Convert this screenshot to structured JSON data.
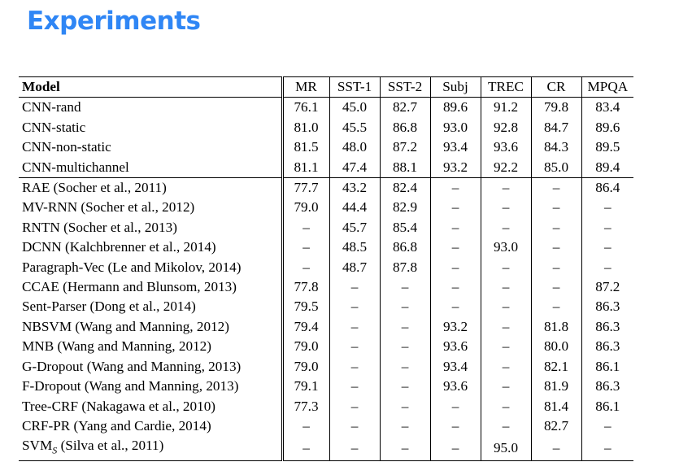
{
  "title": "Experiments",
  "table": {
    "headers": [
      "Model",
      "MR",
      "SST-1",
      "SST-2",
      "Subj",
      "TREC",
      "CR",
      "MPQA"
    ],
    "rows": [
      {
        "model": "CNN-rand",
        "values": [
          "76.1",
          "45.0",
          "82.7",
          "89.6",
          "91.2",
          "79.8",
          "83.4"
        ],
        "bold": []
      },
      {
        "model": "CNN-static",
        "values": [
          "81.0",
          "45.5",
          "86.8",
          "93.0",
          "92.8",
          "84.7",
          "89.6"
        ],
        "bold": [
          6
        ]
      },
      {
        "model": "CNN-non-static",
        "values": [
          "81.5",
          "48.0",
          "87.2",
          "93.4",
          "93.6",
          "84.3",
          "89.5"
        ],
        "bold": [
          0
        ]
      },
      {
        "model": "CNN-multichannel",
        "values": [
          "81.1",
          "47.4",
          "88.1",
          "93.2",
          "92.2",
          "85.0",
          "89.4"
        ],
        "bold": [
          2,
          5
        ],
        "group_end": true
      },
      {
        "model": "RAE (Socher et al., 2011)",
        "values": [
          "77.7",
          "43.2",
          "82.4",
          "–",
          "–",
          "–",
          "86.4"
        ],
        "bold": []
      },
      {
        "model": "MV-RNN (Socher et al., 2012)",
        "values": [
          "79.0",
          "44.4",
          "82.9",
          "–",
          "–",
          "–",
          "–"
        ],
        "bold": []
      },
      {
        "model": "RNTN (Socher et al., 2013)",
        "values": [
          "–",
          "45.7",
          "85.4",
          "–",
          "–",
          "–",
          "–"
        ],
        "bold": []
      },
      {
        "model": "DCNN (Kalchbrenner et al., 2014)",
        "values": [
          "–",
          "48.5",
          "86.8",
          "–",
          "93.0",
          "–",
          "–"
        ],
        "bold": []
      },
      {
        "model": "Paragraph-Vec (Le and Mikolov, 2014)",
        "values": [
          "–",
          "48.7",
          "87.8",
          "–",
          "–",
          "–",
          "–"
        ],
        "bold": [
          1
        ]
      },
      {
        "model": "CCAE (Hermann and Blunsom, 2013)",
        "values": [
          "77.8",
          "–",
          "–",
          "–",
          "–",
          "–",
          "87.2"
        ],
        "bold": []
      },
      {
        "model": "Sent-Parser (Dong et al., 2014)",
        "values": [
          "79.5",
          "–",
          "–",
          "–",
          "–",
          "–",
          "86.3"
        ],
        "bold": []
      },
      {
        "model": "NBSVM (Wang and Manning, 2012)",
        "values": [
          "79.4",
          "–",
          "–",
          "93.2",
          "–",
          "81.8",
          "86.3"
        ],
        "bold": []
      },
      {
        "model": "MNB (Wang and Manning, 2012)",
        "values": [
          "79.0",
          "–",
          "–",
          "93.6",
          "–",
          "80.0",
          "86.3"
        ],
        "bold": [
          3
        ]
      },
      {
        "model": "G-Dropout (Wang and Manning, 2013)",
        "values": [
          "79.0",
          "–",
          "–",
          "93.4",
          "–",
          "82.1",
          "86.1"
        ],
        "bold": []
      },
      {
        "model": "F-Dropout (Wang and Manning, 2013)",
        "values": [
          "79.1",
          "–",
          "–",
          "93.6",
          "–",
          "81.9",
          "86.3"
        ],
        "bold": [
          3
        ]
      },
      {
        "model": "Tree-CRF (Nakagawa et al., 2010)",
        "values": [
          "77.3",
          "–",
          "–",
          "–",
          "–",
          "81.4",
          "86.1"
        ],
        "bold": []
      },
      {
        "model": "CRF-PR (Yang and Cardie, 2014)",
        "values": [
          "–",
          "–",
          "–",
          "–",
          "–",
          "82.7",
          "–"
        ],
        "bold": []
      },
      {
        "model": "SVMS (Silva et al., 2011)",
        "values": [
          "–",
          "–",
          "–",
          "–",
          "95.0",
          "–",
          "–"
        ],
        "bold": [
          4
        ]
      }
    ]
  }
}
